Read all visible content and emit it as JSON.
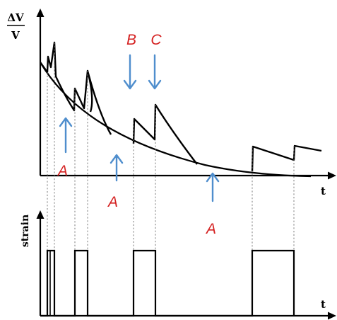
{
  "top_panel": {
    "ylabel_numerator": "ΔV",
    "ylabel_denominator": "V",
    "xlabel": "t"
  },
  "bottom_panel": {
    "ylabel": "strain",
    "xlabel": "t"
  },
  "annotations": [
    {
      "label": "A",
      "arrow": "up",
      "color": "#d42020"
    },
    {
      "label": "A",
      "arrow": "up",
      "color": "#d42020"
    },
    {
      "label": "A",
      "arrow": "up",
      "color": "#d42020"
    },
    {
      "label": "B",
      "arrow": "down",
      "color": "#d42020"
    },
    {
      "label": "C",
      "arrow": "down",
      "color": "#d42020"
    }
  ],
  "arrow_color": "#4f8ecd"
}
